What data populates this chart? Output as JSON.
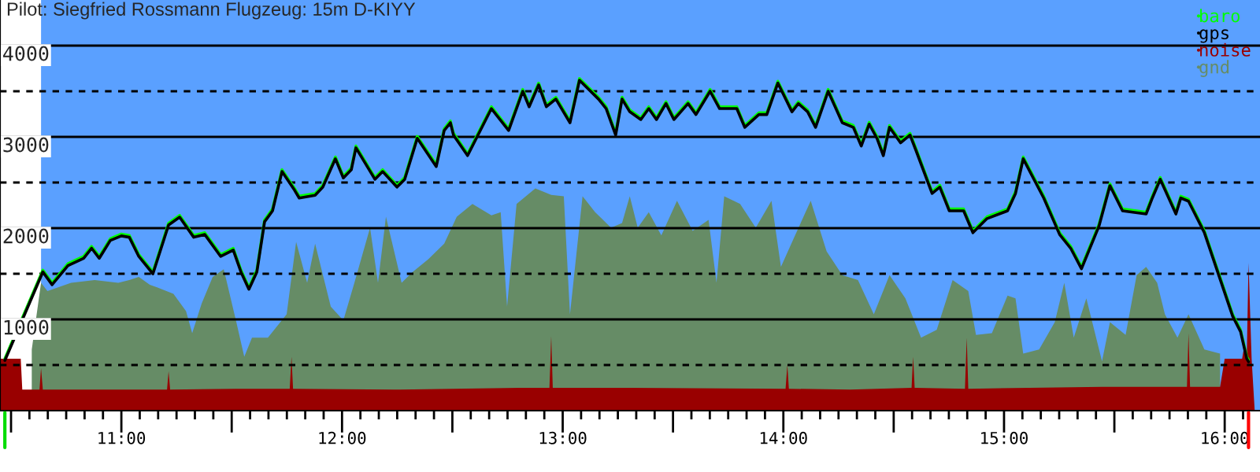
{
  "chart_data": {
    "type": "line",
    "title": "Pilot: Siegfried Rossmann Flugzeug: 15m D-KIYY",
    "x": [
      10.472,
      10.644,
      10.686,
      10.758,
      10.829,
      10.865,
      10.9,
      10.95,
      11.0,
      11.036,
      11.079,
      11.143,
      11.214,
      11.264,
      11.328,
      11.378,
      11.45,
      11.507,
      11.542,
      11.578,
      11.614,
      11.649,
      11.664,
      11.685,
      11.728,
      11.785,
      11.806,
      11.878,
      11.913,
      11.97,
      12.006,
      12.042,
      12.063,
      12.149,
      12.184,
      12.249,
      12.284,
      12.341,
      12.427,
      12.463,
      12.491,
      12.505,
      12.569,
      12.677,
      12.755,
      12.819,
      12.848,
      12.891,
      12.926,
      12.969,
      13.033,
      13.076,
      13.162,
      13.197,
      13.24,
      13.269,
      13.304,
      13.354,
      13.39,
      13.425,
      13.468,
      13.504,
      13.568,
      13.604,
      13.668,
      13.711,
      13.789,
      13.825,
      13.889,
      13.925,
      13.975,
      14.039,
      14.068,
      14.11,
      14.146,
      14.203,
      14.267,
      14.317,
      14.353,
      14.389,
      14.424,
      14.453,
      14.481,
      14.531,
      14.574,
      14.602,
      14.674,
      14.709,
      14.752,
      14.817,
      14.859,
      14.923,
      15.016,
      15.052,
      15.087,
      15.18,
      15.252,
      15.302,
      15.351,
      15.43,
      15.48,
      15.537,
      15.644,
      15.672,
      15.708,
      15.779,
      15.801,
      15.836,
      15.908,
      16.036,
      16.072,
      16.1,
      16.108
    ],
    "series": [
      {
        "name": "baro",
        "type": "line",
        "color": "#00ff00",
        "values": [
          570,
          1540,
          1400,
          1610,
          1690,
          1800,
          1690,
          1885,
          1935,
          1920,
          1710,
          1520,
          2055,
          2140,
          1920,
          1950,
          1710,
          1780,
          1540,
          1350,
          1540,
          2090,
          2140,
          2210,
          2640,
          2435,
          2350,
          2380,
          2470,
          2780,
          2570,
          2660,
          2900,
          2555,
          2640,
          2470,
          2555,
          3005,
          2695,
          3090,
          3175,
          3040,
          2815,
          3330,
          3090,
          3520,
          3350,
          3590,
          3350,
          3435,
          3175,
          3640,
          3435,
          3330,
          3040,
          3435,
          3295,
          3210,
          3330,
          3210,
          3385,
          3210,
          3385,
          3265,
          3520,
          3330,
          3330,
          3125,
          3265,
          3265,
          3610,
          3295,
          3385,
          3295,
          3125,
          3520,
          3175,
          3125,
          2920,
          3160,
          3005,
          2815,
          3125,
          2955,
          3040,
          2865,
          2400,
          2470,
          2210,
          2210,
          1970,
          2125,
          2210,
          2400,
          2780,
          2350,
          1950,
          1800,
          1575,
          2040,
          2485,
          2210,
          2175,
          2350,
          2555,
          2175,
          2350,
          2315,
          1970,
          1055,
          885,
          590,
          555
        ]
      },
      {
        "name": "gps",
        "type": "line",
        "color": "#000000",
        "values": [
          550,
          1520,
          1380,
          1590,
          1670,
          1780,
          1670,
          1865,
          1915,
          1900,
          1690,
          1500,
          2035,
          2120,
          1900,
          1930,
          1690,
          1760,
          1520,
          1330,
          1520,
          2070,
          2120,
          2190,
          2620,
          2415,
          2330,
          2360,
          2450,
          2760,
          2550,
          2640,
          2880,
          2535,
          2620,
          2450,
          2535,
          2985,
          2675,
          3070,
          3155,
          3020,
          2795,
          3310,
          3070,
          3500,
          3330,
          3570,
          3330,
          3415,
          3155,
          3620,
          3415,
          3310,
          3020,
          3415,
          3275,
          3190,
          3310,
          3190,
          3365,
          3190,
          3365,
          3245,
          3500,
          3310,
          3310,
          3105,
          3245,
          3245,
          3590,
          3275,
          3365,
          3275,
          3105,
          3500,
          3155,
          3105,
          2900,
          3140,
          2985,
          2795,
          3105,
          2935,
          3020,
          2845,
          2380,
          2450,
          2190,
          2190,
          1950,
          2105,
          2190,
          2380,
          2760,
          2330,
          1930,
          1780,
          1555,
          2020,
          2465,
          2190,
          2155,
          2330,
          2535,
          2155,
          2330,
          2295,
          1950,
          1035,
          865,
          570,
          535
        ]
      },
      {
        "name": "noise",
        "type": "area",
        "color": "#990000",
        "x": [
          10.451,
          10.544,
          10.551,
          10.629,
          10.636,
          10.644,
          11.207,
          11.214,
          11.221,
          11.521,
          11.763,
          11.771,
          11.778,
          12.234,
          12.805,
          12.94,
          12.948,
          12.955,
          13.304,
          14.01,
          14.018,
          14.025,
          14.303,
          14.581,
          14.588,
          14.595,
          14.823,
          14.831,
          14.838,
          15.444,
          15.829,
          15.836,
          15.843,
          15.979,
          16.0,
          16.079,
          16.086,
          16.1,
          16.108,
          16.122,
          16.136
        ],
        "values": [
          570,
          570,
          230,
          230,
          465,
          230,
          230,
          430,
          230,
          240,
          240,
          590,
          240,
          230,
          250,
          250,
          815,
          250,
          250,
          240,
          500,
          240,
          230,
          250,
          590,
          250,
          240,
          800,
          240,
          260,
          260,
          850,
          260,
          260,
          570,
          570,
          670,
          570,
          1620,
          570,
          0
        ]
      },
      {
        "name": "gnd",
        "type": "area",
        "color": "#668c66",
        "x": [
          10.594,
          10.636,
          10.665,
          10.772,
          10.879,
          10.986,
          11.036,
          11.079,
          11.129,
          11.164,
          11.236,
          11.293,
          11.321,
          11.364,
          11.414,
          11.464,
          11.521,
          11.557,
          11.592,
          11.664,
          11.749,
          11.792,
          11.842,
          11.878,
          11.949,
          12.006,
          12.056,
          12.127,
          12.163,
          12.199,
          12.27,
          12.32,
          12.391,
          12.463,
          12.52,
          12.591,
          12.677,
          12.719,
          12.748,
          12.791,
          12.876,
          12.948,
          13.005,
          13.033,
          13.09,
          13.147,
          13.219,
          13.269,
          13.304,
          13.34,
          13.39,
          13.447,
          13.518,
          13.589,
          13.661,
          13.697,
          13.732,
          13.804,
          13.875,
          13.946,
          13.989,
          14.053,
          14.124,
          14.196,
          14.267,
          14.338,
          14.41,
          14.481,
          14.553,
          14.624,
          14.695,
          14.767,
          14.838,
          14.873,
          14.945,
          15.016,
          15.052,
          15.087,
          15.159,
          15.23,
          15.273,
          15.316,
          15.373,
          15.444,
          15.48,
          15.551,
          15.601,
          15.644,
          15.694,
          15.729,
          15.786,
          15.836,
          15.908,
          15.979
        ],
        "values": [
          670,
          1400,
          1310,
          1400,
          1430,
          1400,
          1430,
          1465,
          1380,
          1350,
          1280,
          1090,
          850,
          1175,
          1465,
          1550,
          970,
          590,
          800,
          800,
          1055,
          1850,
          1400,
          1830,
          1140,
          990,
          1400,
          2005,
          1400,
          2125,
          1400,
          1520,
          1660,
          1830,
          2125,
          2265,
          2140,
          2175,
          1140,
          2265,
          2435,
          2365,
          2350,
          1055,
          2350,
          2175,
          2005,
          2055,
          2350,
          2005,
          2175,
          1920,
          2300,
          1970,
          2090,
          1400,
          2350,
          2265,
          2005,
          2300,
          1575,
          1920,
          2300,
          1745,
          1485,
          1430,
          1055,
          1485,
          1230,
          800,
          885,
          1430,
          1310,
          830,
          850,
          1260,
          1230,
          625,
          670,
          970,
          1400,
          800,
          1230,
          540,
          970,
          830,
          1485,
          1575,
          1400,
          1055,
          800,
          1055,
          670,
          625
        ]
      }
    ],
    "xlim": [
      10.45,
      16.16
    ],
    "xticks": [
      {
        "value": 10.5,
        "label": null
      },
      {
        "value": 10.5833,
        "label": null
      },
      {
        "value": 10.6667,
        "label": null
      },
      {
        "value": 10.75,
        "label": null
      },
      {
        "value": 10.8333,
        "label": null
      },
      {
        "value": 10.9167,
        "label": null
      },
      {
        "value": 11,
        "label": "11:00"
      },
      {
        "value": 11.0833,
        "label": null
      },
      {
        "value": 11.1667,
        "label": null
      },
      {
        "value": 11.25,
        "label": null
      },
      {
        "value": 11.3333,
        "label": null
      },
      {
        "value": 11.4167,
        "label": null
      },
      {
        "value": 11.5,
        "label": null
      },
      {
        "value": 11.5833,
        "label": null
      },
      {
        "value": 11.6667,
        "label": null
      },
      {
        "value": 11.75,
        "label": null
      },
      {
        "value": 11.8333,
        "label": null
      },
      {
        "value": 11.9167,
        "label": null
      },
      {
        "value": 12,
        "label": "12:00"
      },
      {
        "value": 12.0833,
        "label": null
      },
      {
        "value": 12.1667,
        "label": null
      },
      {
        "value": 12.25,
        "label": null
      },
      {
        "value": 12.3333,
        "label": null
      },
      {
        "value": 12.4167,
        "label": null
      },
      {
        "value": 12.5,
        "label": null
      },
      {
        "value": 12.5833,
        "label": null
      },
      {
        "value": 12.6667,
        "label": null
      },
      {
        "value": 12.75,
        "label": null
      },
      {
        "value": 12.8333,
        "label": null
      },
      {
        "value": 12.9167,
        "label": null
      },
      {
        "value": 13,
        "label": "13:00"
      },
      {
        "value": 13.0833,
        "label": null
      },
      {
        "value": 13.1667,
        "label": null
      },
      {
        "value": 13.25,
        "label": null
      },
      {
        "value": 13.3333,
        "label": null
      },
      {
        "value": 13.4167,
        "label": null
      },
      {
        "value": 13.5,
        "label": null
      },
      {
        "value": 13.5833,
        "label": null
      },
      {
        "value": 13.6667,
        "label": null
      },
      {
        "value": 13.75,
        "label": null
      },
      {
        "value": 13.8333,
        "label": null
      },
      {
        "value": 13.9167,
        "label": null
      },
      {
        "value": 14,
        "label": "14:00"
      },
      {
        "value": 14.0833,
        "label": null
      },
      {
        "value": 14.1667,
        "label": null
      },
      {
        "value": 14.25,
        "label": null
      },
      {
        "value": 14.3333,
        "label": null
      },
      {
        "value": 14.4167,
        "label": null
      },
      {
        "value": 14.5,
        "label": null
      },
      {
        "value": 14.5833,
        "label": null
      },
      {
        "value": 14.6667,
        "label": null
      },
      {
        "value": 14.75,
        "label": null
      },
      {
        "value": 14.8333,
        "label": null
      },
      {
        "value": 14.9167,
        "label": null
      },
      {
        "value": 15,
        "label": "15:00"
      },
      {
        "value": 15.0833,
        "label": null
      },
      {
        "value": 15.1667,
        "label": null
      },
      {
        "value": 15.25,
        "label": null
      },
      {
        "value": 15.3333,
        "label": null
      },
      {
        "value": 15.4167,
        "label": null
      },
      {
        "value": 15.5,
        "label": null
      },
      {
        "value": 15.5833,
        "label": null
      },
      {
        "value": 15.6667,
        "label": null
      },
      {
        "value": 15.75,
        "label": null
      },
      {
        "value": 15.8333,
        "label": null
      },
      {
        "value": 15.9167,
        "label": null
      },
      {
        "value": 16,
        "label": "16:00"
      },
      {
        "value": 16.0833,
        "label": null
      }
    ],
    "ylim": [
      0,
      4500
    ],
    "yticks": [
      {
        "value": 500,
        "label": null
      },
      1000,
      {
        "value": 1500,
        "label": null
      },
      2000,
      {
        "value": 2500,
        "label": null
      },
      3000,
      {
        "value": 3500,
        "label": null
      },
      4000
    ],
    "grid": "y",
    "legend": "top right",
    "bands": [
      {
        "axis": "x",
        "from": 10.636,
        "to": 16.16,
        "label": null,
        "color": "#5aa0ff"
      }
    ]
  }
}
